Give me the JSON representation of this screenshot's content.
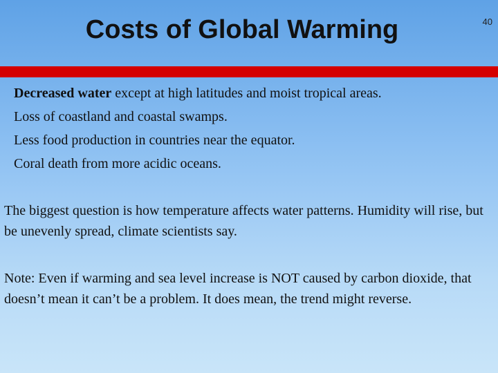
{
  "slide": {
    "title": "Costs of Global Warming",
    "number": "40",
    "accent_color": "#d40000",
    "bullets": [
      {
        "lead": "Decreased water",
        "rest": " except at high latitudes and moist tropical areas."
      },
      {
        "lead": "",
        "rest": "Loss of coastland and coastal swamps."
      },
      {
        "lead": "",
        "rest": "Less food production  in countries near the equator."
      },
      {
        "lead": "",
        "rest": "Coral death from more acidic oceans."
      }
    ],
    "paragraphs": [
      "The biggest question is how temperature affects water patterns. Humidity will rise, but be unevenly spread, climate scientists say.",
      "Note: Even if warming and sea level increase is NOT caused by carbon dioxide, that doesn’t mean it can’t be a problem.  It does mean, the trend might reverse."
    ]
  }
}
